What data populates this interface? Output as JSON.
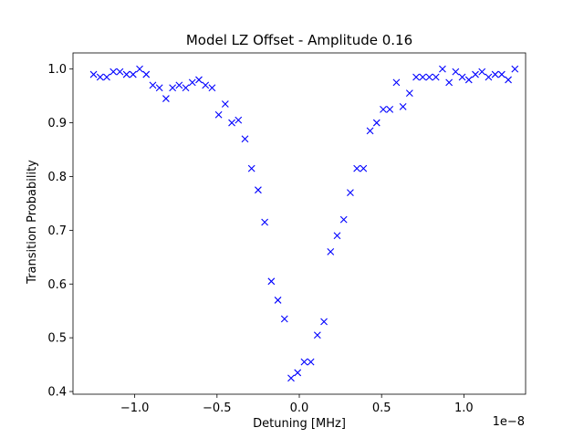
{
  "chart_data": {
    "type": "scatter",
    "title": "Model LZ Offset - Amplitude 0.16",
    "xlabel": "Detuning [MHz]",
    "ylabel": "Transition Probability",
    "x_offset_text": "1e−8",
    "xlim": [
      -1.375,
      1.375
    ],
    "ylim": [
      0.395,
      1.03
    ],
    "x_scale_factor": 1e-08,
    "xticks": [
      -1.0,
      -0.5,
      0.0,
      0.5,
      1.0
    ],
    "xtick_labels": [
      "−1.0",
      "−0.5",
      "0.0",
      "0.5",
      "1.0"
    ],
    "yticks": [
      0.4,
      0.5,
      0.6,
      0.7,
      0.8,
      0.9,
      1.0
    ],
    "ytick_labels": [
      "0.4",
      "0.5",
      "0.6",
      "0.7",
      "0.8",
      "0.9",
      "1.0"
    ],
    "grid": false,
    "marker": "x",
    "color": "#0000ff",
    "series": [
      {
        "points": [
          [
            -1.25,
            0.99
          ],
          [
            -1.21,
            0.985
          ],
          [
            -1.17,
            0.985
          ],
          [
            -1.13,
            0.995
          ],
          [
            -1.09,
            0.995
          ],
          [
            -1.05,
            0.99
          ],
          [
            -1.01,
            0.99
          ],
          [
            -0.97,
            1.0
          ],
          [
            -0.93,
            0.99
          ],
          [
            -0.89,
            0.97
          ],
          [
            -0.85,
            0.965
          ],
          [
            -0.81,
            0.945
          ],
          [
            -0.77,
            0.965
          ],
          [
            -0.73,
            0.97
          ],
          [
            -0.69,
            0.965
          ],
          [
            -0.65,
            0.975
          ],
          [
            -0.61,
            0.98
          ],
          [
            -0.57,
            0.97
          ],
          [
            -0.53,
            0.965
          ],
          [
            -0.49,
            0.915
          ],
          [
            -0.45,
            0.935
          ],
          [
            -0.41,
            0.9
          ],
          [
            -0.37,
            0.905
          ],
          [
            -0.33,
            0.87
          ],
          [
            -0.29,
            0.815
          ],
          [
            -0.25,
            0.775
          ],
          [
            -0.21,
            0.715
          ],
          [
            -0.17,
            0.605
          ],
          [
            -0.13,
            0.57
          ],
          [
            -0.09,
            0.535
          ],
          [
            -0.05,
            0.425
          ],
          [
            -0.01,
            0.435
          ],
          [
            0.03,
            0.455
          ],
          [
            0.07,
            0.455
          ],
          [
            0.11,
            0.505
          ],
          [
            0.15,
            0.53
          ],
          [
            0.19,
            0.66
          ],
          [
            0.23,
            0.69
          ],
          [
            0.27,
            0.72
          ],
          [
            0.31,
            0.77
          ],
          [
            0.35,
            0.815
          ],
          [
            0.39,
            0.815
          ],
          [
            0.43,
            0.885
          ],
          [
            0.47,
            0.9
          ],
          [
            0.51,
            0.925
          ],
          [
            0.55,
            0.925
          ],
          [
            0.59,
            0.975
          ],
          [
            0.63,
            0.93
          ],
          [
            0.67,
            0.955
          ],
          [
            0.71,
            0.985
          ],
          [
            0.75,
            0.985
          ],
          [
            0.79,
            0.985
          ],
          [
            0.83,
            0.985
          ],
          [
            0.87,
            1.0
          ],
          [
            0.91,
            0.975
          ],
          [
            0.95,
            0.995
          ],
          [
            0.99,
            0.985
          ],
          [
            1.03,
            0.98
          ],
          [
            1.07,
            0.99
          ],
          [
            1.11,
            0.995
          ],
          [
            1.15,
            0.985
          ],
          [
            1.19,
            0.99
          ],
          [
            1.23,
            0.99
          ],
          [
            1.27,
            0.98
          ],
          [
            1.31,
            1.0
          ]
        ]
      }
    ]
  }
}
